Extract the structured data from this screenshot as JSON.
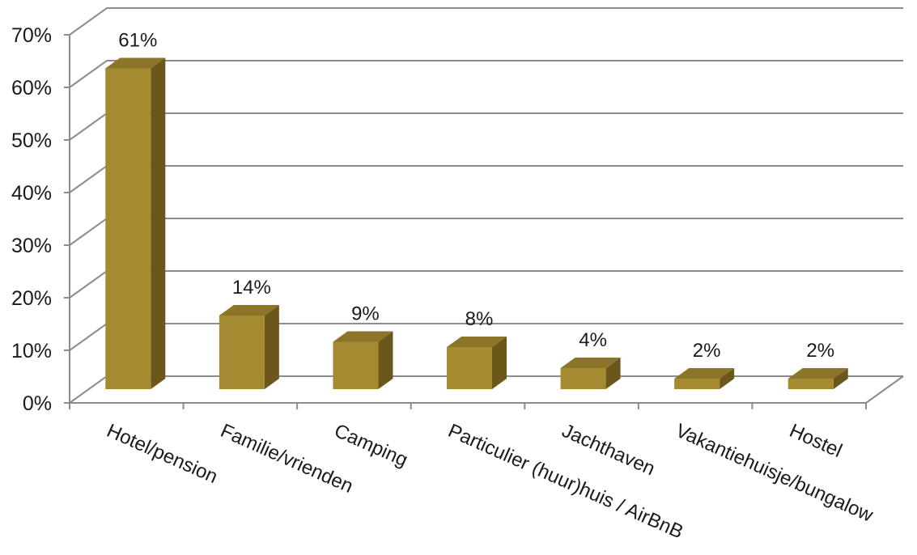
{
  "chart_data": {
    "type": "bar",
    "three_d": true,
    "categories": [
      "Hotel/pension",
      "Familie/vrienden",
      "Camping",
      "Particulier (huur)huis / AirBnB",
      "Jachthaven",
      "Vakantiehuisje/bungalow",
      "Hostel"
    ],
    "values": [
      61,
      14,
      9,
      8,
      4,
      2,
      2
    ],
    "data_labels": [
      "61%",
      "14%",
      "9%",
      "8%",
      "4%",
      "2%",
      "2%"
    ],
    "y_ticks": [
      "0%",
      "10%",
      "20%",
      "30%",
      "40%",
      "50%",
      "60%",
      "70%"
    ],
    "ylim": [
      0,
      70
    ],
    "grid": true,
    "legend": "none",
    "colors": {
      "front": "#A68A32",
      "top": "#8C7428",
      "side": "#6B5719",
      "grid": "#8c8c8c"
    }
  }
}
